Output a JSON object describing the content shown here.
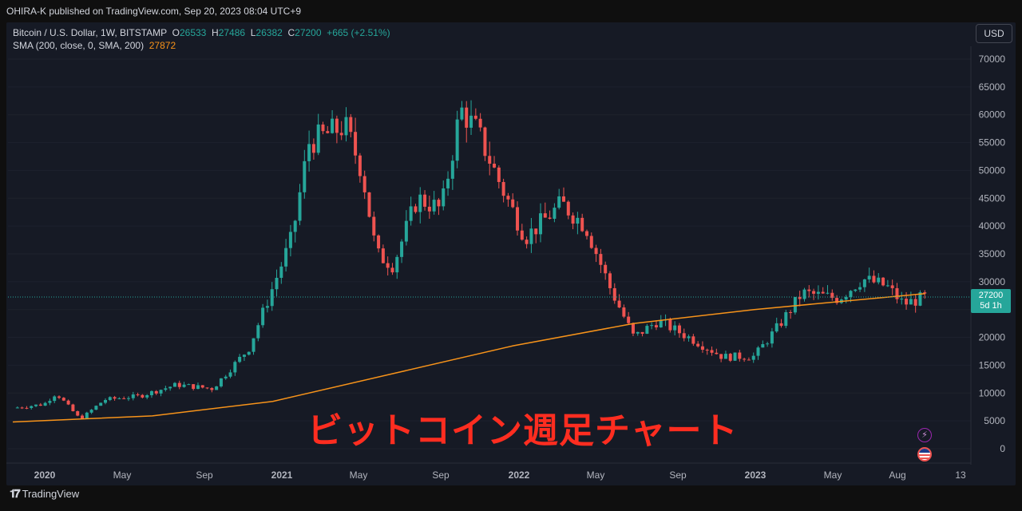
{
  "header": {
    "published": "OHIRA-K published on TradingView.com, Sep 20, 2023 08:04 UTC+9"
  },
  "legend": {
    "symbol": "Bitcoin / U.S. Dollar, 1W, BITSTAMP",
    "o_label": "O",
    "o_value": "26533",
    "h_label": "H",
    "h_value": "27486",
    "l_label": "L",
    "l_value": "26382",
    "c_label": "C",
    "c_value": "27200",
    "change": "+665 (+2.51%)",
    "sma_label": "SMA (200, close, 0, SMA, 200)",
    "sma_value": "27872"
  },
  "currency_button": "USD",
  "price_tag": {
    "price": "27200",
    "countdown": "5d 1h"
  },
  "overlay_title": "ビットコイン週足チャート",
  "footer": {
    "brand": "TradingView"
  },
  "colors": {
    "up": "#26a69a",
    "down": "#ef5350",
    "sma": "#f7931a",
    "background": "#161a25",
    "overlay": "#ff2d20"
  },
  "chart_data": {
    "type": "candlestick",
    "y_ticks": [
      "70000",
      "65000",
      "60000",
      "55000",
      "50000",
      "45000",
      "40000",
      "35000",
      "30000",
      "25000",
      "20000",
      "15000",
      "10000",
      "5000",
      "0"
    ],
    "x_ticks": [
      "2020",
      "May",
      "Sep",
      "2021",
      "May",
      "Sep",
      "2022",
      "May",
      "Sep",
      "2023",
      "May",
      "Aug",
      "13"
    ],
    "ylim": [
      0,
      70000
    ],
    "series": [
      {
        "name": "Bitcoin / U.S. Dollar",
        "approx_weekly_close": [
          [
            2019.92,
            7300
          ],
          [
            2020.05,
            8000
          ],
          [
            2020.1,
            10000
          ],
          [
            2020.2,
            5300
          ],
          [
            2020.3,
            8800
          ],
          [
            2020.45,
            9500
          ],
          [
            2020.6,
            11500
          ],
          [
            2020.75,
            10800
          ],
          [
            2020.9,
            18000
          ],
          [
            2021.0,
            29000
          ],
          [
            2021.08,
            38000
          ],
          [
            2021.15,
            55000
          ],
          [
            2021.3,
            58000
          ],
          [
            2021.37,
            50000
          ],
          [
            2021.43,
            35000
          ],
          [
            2021.5,
            33000
          ],
          [
            2021.6,
            45000
          ],
          [
            2021.7,
            43000
          ],
          [
            2021.78,
            61000
          ],
          [
            2021.85,
            57000
          ],
          [
            2021.95,
            47000
          ],
          [
            2022.05,
            38000
          ],
          [
            2022.2,
            44000
          ],
          [
            2022.3,
            40000
          ],
          [
            2022.4,
            29000
          ],
          [
            2022.5,
            20000
          ],
          [
            2022.6,
            23000
          ],
          [
            2022.75,
            19500
          ],
          [
            2022.87,
            16500
          ],
          [
            2023.0,
            16600
          ],
          [
            2023.1,
            22000
          ],
          [
            2023.2,
            28000
          ],
          [
            2023.35,
            27000
          ],
          [
            2023.45,
            30500
          ],
          [
            2023.55,
            29200
          ],
          [
            2023.62,
            26000
          ],
          [
            2023.71,
            27200
          ]
        ]
      },
      {
        "name": "SMA (200, close, 0, SMA, 200)",
        "approx_values": [
          [
            2019.92,
            4800
          ],
          [
            2020.5,
            5900
          ],
          [
            2021.0,
            8500
          ],
          [
            2021.5,
            13500
          ],
          [
            2022.0,
            18500
          ],
          [
            2022.5,
            22500
          ],
          [
            2023.0,
            25000
          ],
          [
            2023.71,
            27872
          ]
        ]
      }
    ]
  }
}
